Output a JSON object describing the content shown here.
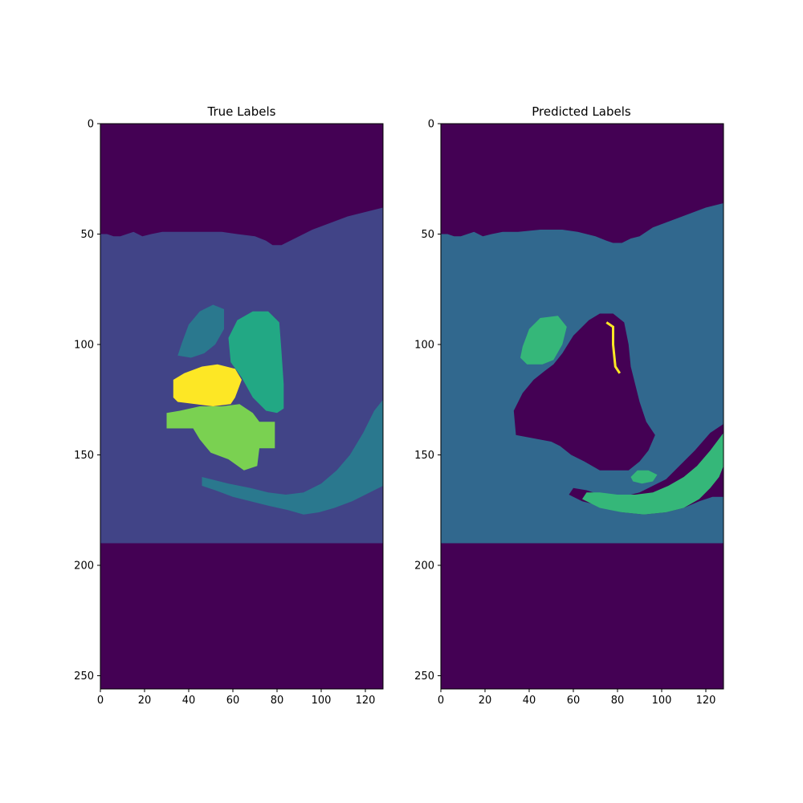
{
  "chart_data": [
    {
      "type": "heatmap",
      "title": "True Labels",
      "xlim": [
        0,
        128
      ],
      "ylim": [
        256,
        0
      ],
      "x_ticks": [
        0,
        20,
        40,
        60,
        80,
        100,
        120
      ],
      "y_ticks": [
        0,
        50,
        100,
        150,
        200,
        250
      ],
      "colormap": "viridis",
      "grid": false,
      "class_colors": {
        "background": "#440154",
        "tissue": "#414487",
        "region_a": "#2a788e",
        "region_b": "#22a884",
        "region_c": "#7ad151",
        "region_d": "#fde725"
      },
      "regions": [
        {
          "label": "background",
          "shape": "full"
        },
        {
          "label": "tissue",
          "shape": "polygon",
          "points": [
            [
              0,
              50
            ],
            [
              3,
              50
            ],
            [
              6,
              51
            ],
            [
              9,
              51
            ],
            [
              12,
              50
            ],
            [
              15,
              49
            ],
            [
              19,
              51
            ],
            [
              23,
              50
            ],
            [
              28,
              49
            ],
            [
              35,
              49
            ],
            [
              45,
              49
            ],
            [
              55,
              49
            ],
            [
              62,
              50
            ],
            [
              70,
              51
            ],
            [
              75,
              53
            ],
            [
              78,
              55
            ],
            [
              82,
              55
            ],
            [
              86,
              53
            ],
            [
              90,
              51
            ],
            [
              96,
              48
            ],
            [
              104,
              45
            ],
            [
              112,
              42
            ],
            [
              120,
              40
            ],
            [
              128,
              38
            ],
            [
              128,
              190
            ],
            [
              0,
              190
            ]
          ]
        },
        {
          "label": "region_a",
          "shape": "polygon",
          "points": [
            [
              128,
              125
            ],
            [
              124,
              130
            ],
            [
              119,
              140
            ],
            [
              113,
              150
            ],
            [
              107,
              157
            ],
            [
              100,
              163
            ],
            [
              92,
              167
            ],
            [
              84,
              168
            ],
            [
              76,
              167
            ],
            [
              68,
              165
            ],
            [
              58,
              163
            ],
            [
              50,
              161
            ],
            [
              46,
              160
            ],
            [
              46,
              164
            ],
            [
              52,
              166
            ],
            [
              60,
              169
            ],
            [
              68,
              171
            ],
            [
              76,
              173
            ],
            [
              85,
              175
            ],
            [
              92,
              177
            ],
            [
              99,
              176
            ],
            [
              106,
              174
            ],
            [
              114,
              171
            ],
            [
              122,
              167
            ],
            [
              128,
              164
            ]
          ]
        },
        {
          "label": "region_a",
          "shape": "polygon",
          "points": [
            [
              37,
              99
            ],
            [
              40,
              91
            ],
            [
              45,
              85
            ],
            [
              51,
              82
            ],
            [
              56,
              84
            ],
            [
              56,
              93
            ],
            [
              52,
              100
            ],
            [
              47,
              104
            ],
            [
              41,
              106
            ],
            [
              35,
              105
            ]
          ]
        },
        {
          "label": "region_b",
          "shape": "polygon",
          "points": [
            [
              58,
              97
            ],
            [
              62,
              89
            ],
            [
              69,
              85
            ],
            [
              76,
              85
            ],
            [
              81,
              90
            ],
            [
              82,
              103
            ],
            [
              83,
              118
            ],
            [
              83,
              129
            ],
            [
              80,
              131
            ],
            [
              75,
              130
            ],
            [
              69,
              124
            ],
            [
              64,
              115
            ],
            [
              59,
              108
            ]
          ]
        },
        {
          "label": "region_c",
          "shape": "polygon",
          "points": [
            [
              30,
              131
            ],
            [
              36,
              130
            ],
            [
              45,
              128
            ],
            [
              55,
              128
            ],
            [
              63,
              127
            ],
            [
              69,
              131
            ],
            [
              72,
              135
            ],
            [
              79,
              135
            ],
            [
              79,
              147
            ],
            [
              72,
              147
            ],
            [
              71,
              155
            ],
            [
              65,
              157
            ],
            [
              58,
              152
            ],
            [
              50,
              149
            ],
            [
              45,
              143
            ],
            [
              42,
              138
            ],
            [
              30,
              138
            ]
          ]
        },
        {
          "label": "region_d",
          "shape": "polygon",
          "points": [
            [
              33,
              116
            ],
            [
              38,
              113
            ],
            [
              46,
              110
            ],
            [
              53,
              109
            ],
            [
              61,
              111
            ],
            [
              64,
              116
            ],
            [
              61,
              124
            ],
            [
              59,
              127
            ],
            [
              51,
              128
            ],
            [
              43,
              127
            ],
            [
              35,
              126
            ],
            [
              33,
              124
            ]
          ]
        }
      ]
    },
    {
      "type": "heatmap",
      "title": "Predicted Labels",
      "xlim": [
        0,
        128
      ],
      "ylim": [
        256,
        0
      ],
      "x_ticks": [
        0,
        20,
        40,
        60,
        80,
        100,
        120
      ],
      "y_ticks": [
        0,
        50,
        100,
        150,
        200,
        250
      ],
      "colormap": "viridis",
      "grid": false,
      "class_colors": {
        "background": "#440154",
        "tissue": "#31688e",
        "region_b": "#35b779",
        "region_d": "#fde725"
      },
      "regions": [
        {
          "label": "background",
          "shape": "full"
        },
        {
          "label": "tissue",
          "shape": "polygon",
          "points": [
            [
              0,
              50
            ],
            [
              3,
              50
            ],
            [
              6,
              51
            ],
            [
              9,
              51
            ],
            [
              12,
              50
            ],
            [
              15,
              49
            ],
            [
              19,
              51
            ],
            [
              23,
              50
            ],
            [
              28,
              49
            ],
            [
              35,
              49
            ],
            [
              45,
              48
            ],
            [
              55,
              48
            ],
            [
              62,
              49
            ],
            [
              70,
              51
            ],
            [
              75,
              53
            ],
            [
              78,
              54
            ],
            [
              82,
              54
            ],
            [
              86,
              52
            ],
            [
              90,
              51
            ],
            [
              96,
              47
            ],
            [
              104,
              44
            ],
            [
              112,
              41
            ],
            [
              120,
              38
            ],
            [
              128,
              36
            ],
            [
              128,
              190
            ],
            [
              0,
              190
            ]
          ]
        },
        {
          "label": "background",
          "shape": "polygon",
          "points": [
            [
              67,
              89
            ],
            [
              72,
              86
            ],
            [
              78,
              86
            ],
            [
              83,
              90
            ],
            [
              85,
              100
            ],
            [
              86,
              110
            ],
            [
              88,
              118
            ],
            [
              90,
              126
            ],
            [
              93,
              135
            ],
            [
              97,
              141
            ],
            [
              94,
              148
            ],
            [
              90,
              153
            ],
            [
              85,
              157
            ],
            [
              72,
              157
            ],
            [
              65,
              153
            ],
            [
              59,
              150
            ],
            [
              54,
              146
            ],
            [
              50,
              144
            ],
            [
              34,
              141
            ],
            [
              33,
              130
            ],
            [
              37,
              122
            ],
            [
              42,
              116
            ],
            [
              47,
              112
            ],
            [
              51,
              109
            ],
            [
              55,
              104
            ],
            [
              60,
              96
            ]
          ]
        },
        {
          "label": "region_d",
          "shape": "polyline",
          "points": [
            [
              75,
              90
            ],
            [
              78,
              92
            ],
            [
              78,
              100
            ],
            [
              79,
              110
            ],
            [
              81,
              113
            ]
          ]
        },
        {
          "label": "region_b",
          "shape": "polygon",
          "points": [
            [
              37,
              101
            ],
            [
              40,
              93
            ],
            [
              45,
              88
            ],
            [
              53,
              87
            ],
            [
              57,
              92
            ],
            [
              55,
              100
            ],
            [
              51,
              107
            ],
            [
              46,
              109
            ],
            [
              39,
              109
            ],
            [
              36,
              106
            ]
          ]
        },
        {
          "label": "background",
          "shape": "polygon",
          "points": [
            [
              128,
              136
            ],
            [
              122,
              140
            ],
            [
              115,
              148
            ],
            [
              108,
              155
            ],
            [
              102,
              161
            ],
            [
              96,
              164
            ],
            [
              90,
              167
            ],
            [
              82,
              169
            ],
            [
              75,
              169
            ],
            [
              66,
              166
            ],
            [
              60,
              165
            ],
            [
              58,
              168
            ],
            [
              64,
              171
            ],
            [
              72,
              173
            ],
            [
              82,
              176
            ],
            [
              92,
              177
            ],
            [
              102,
              176
            ],
            [
              110,
              174
            ],
            [
              117,
              171
            ],
            [
              123,
              169
            ],
            [
              128,
              169
            ]
          ]
        },
        {
          "label": "region_b",
          "shape": "polygon",
          "points": [
            [
              128,
              140
            ],
            [
              122,
              148
            ],
            [
              116,
              155
            ],
            [
              110,
              160
            ],
            [
              103,
              164
            ],
            [
              96,
              167
            ],
            [
              88,
              168
            ],
            [
              80,
              168
            ],
            [
              72,
              167
            ],
            [
              66,
              167
            ],
            [
              64,
              170
            ],
            [
              72,
              174
            ],
            [
              82,
              176
            ],
            [
              92,
              177
            ],
            [
              102,
              176
            ],
            [
              110,
              174
            ],
            [
              117,
              170
            ],
            [
              122,
              165
            ],
            [
              126,
              160
            ],
            [
              128,
              155
            ]
          ]
        },
        {
          "label": "region_b",
          "shape": "polygon",
          "points": [
            [
              86,
              160
            ],
            [
              89,
              157
            ],
            [
              94,
              157
            ],
            [
              98,
              159
            ],
            [
              96,
              162
            ],
            [
              91,
              163
            ],
            [
              87,
              162
            ]
          ]
        }
      ]
    }
  ],
  "panels": [
    {
      "title": "True Labels"
    },
    {
      "title": "Predicted Labels"
    }
  ]
}
